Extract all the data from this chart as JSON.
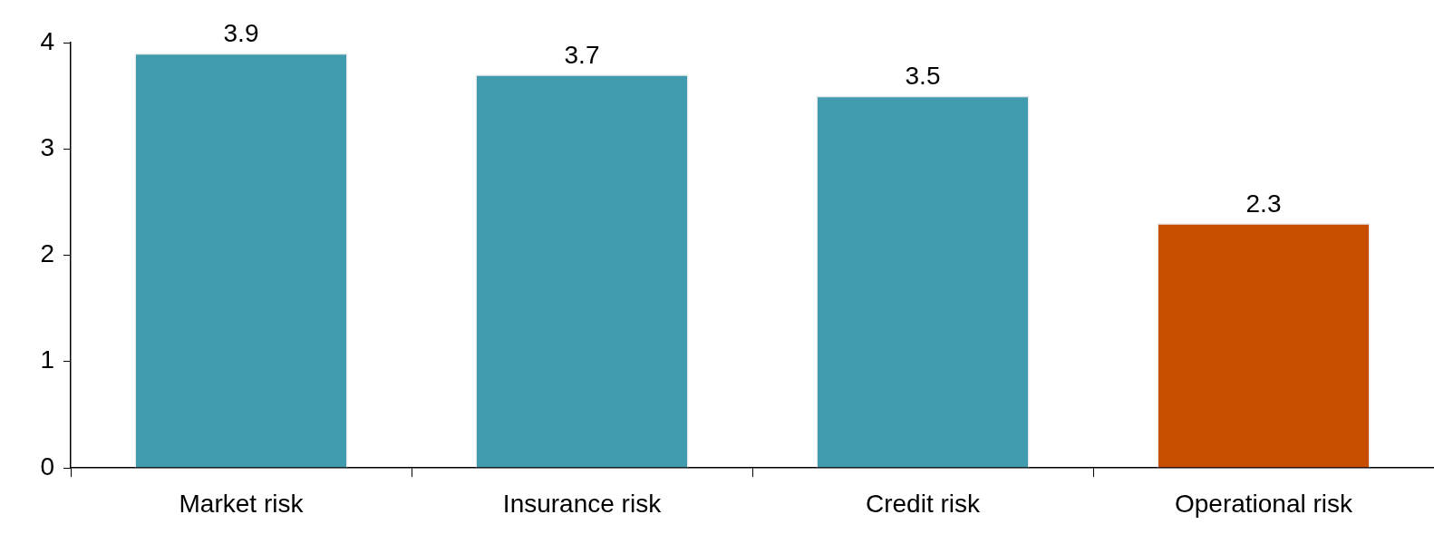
{
  "chart_data": {
    "type": "bar",
    "categories": [
      "Market risk",
      "Insurance risk",
      "Credit risk",
      "Operational risk"
    ],
    "values": [
      3.9,
      3.7,
      3.5,
      2.3
    ],
    "colors": [
      "#409bae",
      "#409bae",
      "#409bae",
      "#c84e00"
    ],
    "ylim": [
      0,
      4
    ],
    "yticks": [
      0,
      1,
      2,
      3,
      4
    ],
    "data_labels": true,
    "grid": false,
    "legend": false
  }
}
